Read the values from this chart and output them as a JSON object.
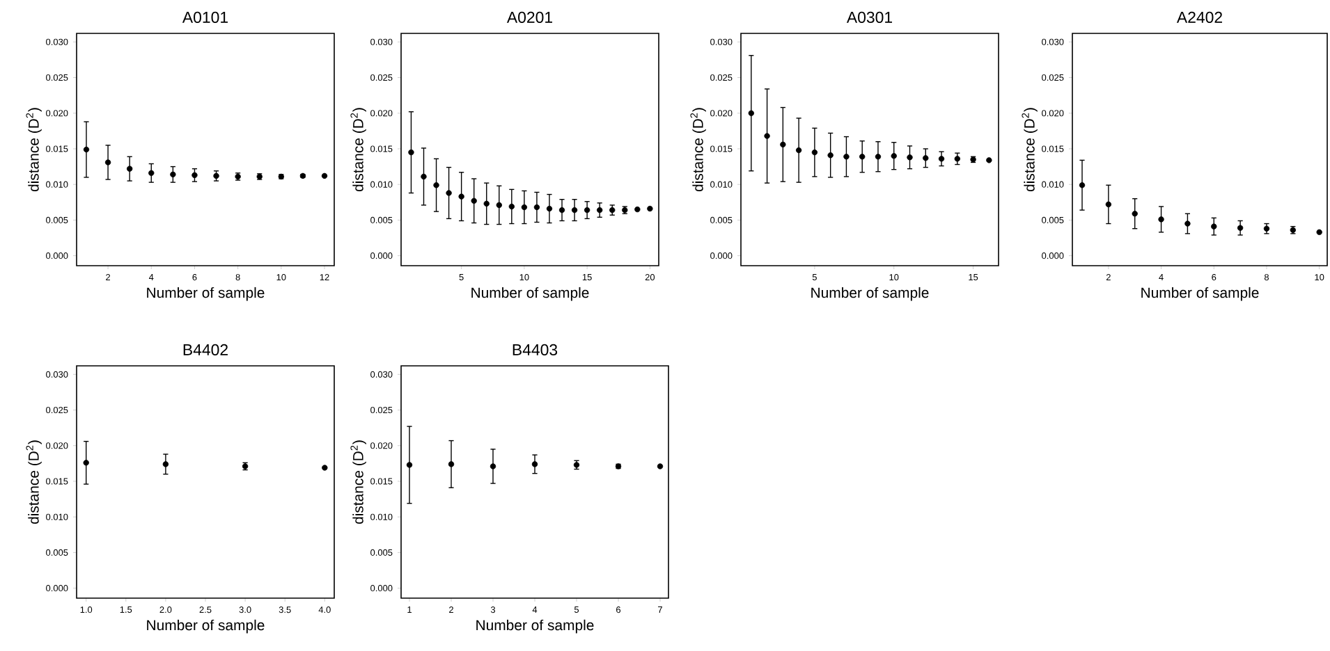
{
  "chart_data": [
    {
      "type": "scatter",
      "title": "A0101",
      "xlabel": "Number of sample",
      "ylabel": "distance (D$^{2}$)",
      "color": "#000000",
      "xlim": [
        0.55,
        12.45
      ],
      "ylim": [
        -0.0014,
        0.0312
      ],
      "xticks": [
        2,
        4,
        6,
        8,
        10,
        12
      ],
      "yticks": [
        {
          "value": 0,
          "label": "0.000"
        },
        {
          "value": 0.005,
          "label": "0.005"
        },
        {
          "value": 0.01,
          "label": "0.010"
        },
        {
          "value": 0.015,
          "label": "0.015"
        },
        {
          "value": 0.02,
          "label": "0.020"
        },
        {
          "value": 0.025,
          "label": "0.025"
        },
        {
          "value": 0.03,
          "label": "0.030"
        }
      ],
      "x": [
        1,
        2,
        3,
        4,
        5,
        6,
        7,
        8,
        9,
        10,
        11,
        12
      ],
      "values": [
        0.0149,
        0.0131,
        0.0122,
        0.0116,
        0.0114,
        0.0113,
        0.0112,
        0.0111,
        0.0111,
        0.0111,
        0.0112,
        0.0112
      ],
      "errors": [
        0.0039,
        0.0024,
        0.0017,
        0.0013,
        0.0011,
        0.0009,
        0.0007,
        0.0005,
        0.0004,
        0.0003,
        0.0002,
        null
      ]
    },
    {
      "type": "scatter",
      "title": "A0201",
      "xlabel": "Number of sample",
      "ylabel": "distance (D$^{2}$)",
      "color": "#000000",
      "xlim": [
        0.2,
        20.7
      ],
      "ylim": [
        -0.0014,
        0.0312
      ],
      "xticks": [
        5,
        10,
        15,
        20
      ],
      "yticks": [
        {
          "value": 0,
          "label": "0.000"
        },
        {
          "value": 0.005,
          "label": "0.005"
        },
        {
          "value": 0.01,
          "label": "0.010"
        },
        {
          "value": 0.015,
          "label": "0.015"
        },
        {
          "value": 0.02,
          "label": "0.020"
        },
        {
          "value": 0.025,
          "label": "0.025"
        },
        {
          "value": 0.03,
          "label": "0.030"
        }
      ],
      "x": [
        1,
        2,
        3,
        4,
        5,
        6,
        7,
        8,
        9,
        10,
        11,
        12,
        13,
        14,
        15,
        16,
        17,
        18,
        19,
        20
      ],
      "values": [
        0.0145,
        0.0111,
        0.0099,
        0.0088,
        0.0083,
        0.0077,
        0.0073,
        0.0071,
        0.0069,
        0.0068,
        0.0068,
        0.0066,
        0.0064,
        0.0064,
        0.0064,
        0.0064,
        0.0064,
        0.0064,
        0.0065,
        0.0066
      ],
      "errors": [
        0.0057,
        0.004,
        0.0037,
        0.0036,
        0.0034,
        0.0031,
        0.0029,
        0.0027,
        0.0024,
        0.0023,
        0.0021,
        0.002,
        0.0015,
        0.0015,
        0.0012,
        0.001,
        0.0007,
        0.0005,
        null,
        null
      ]
    },
    {
      "type": "scatter",
      "title": "A0301",
      "xlabel": "Number of sample",
      "ylabel": "distance (D$^{2}$)",
      "color": "#000000",
      "xlim": [
        0.35,
        16.6
      ],
      "ylim": [
        -0.0014,
        0.0312
      ],
      "xticks": [
        5,
        10,
        15
      ],
      "yticks": [
        {
          "value": 0,
          "label": "0.000"
        },
        {
          "value": 0.005,
          "label": "0.005"
        },
        {
          "value": 0.01,
          "label": "0.010"
        },
        {
          "value": 0.015,
          "label": "0.015"
        },
        {
          "value": 0.02,
          "label": "0.020"
        },
        {
          "value": 0.025,
          "label": "0.025"
        },
        {
          "value": 0.03,
          "label": "0.030"
        }
      ],
      "x": [
        1,
        2,
        3,
        4,
        5,
        6,
        7,
        8,
        9,
        10,
        11,
        12,
        13,
        14,
        15,
        16
      ],
      "values": [
        0.02,
        0.0168,
        0.0156,
        0.0148,
        0.0145,
        0.0141,
        0.0139,
        0.0139,
        0.0139,
        0.014,
        0.0138,
        0.0137,
        0.0136,
        0.0136,
        0.0135,
        0.0134
      ],
      "errors": [
        0.0081,
        0.0066,
        0.0052,
        0.0045,
        0.0034,
        0.0031,
        0.0028,
        0.0022,
        0.0021,
        0.0019,
        0.0016,
        0.0013,
        0.001,
        0.0008,
        0.0004,
        null
      ]
    },
    {
      "type": "scatter",
      "title": "A2402",
      "xlabel": "Number of sample",
      "ylabel": "distance (D$^{2}$)",
      "color": "#000000",
      "xlim": [
        0.63,
        10.3
      ],
      "ylim": [
        -0.0014,
        0.0312
      ],
      "xticks": [
        2,
        4,
        6,
        8,
        10
      ],
      "yticks": [
        {
          "value": 0,
          "label": "0.000"
        },
        {
          "value": 0.005,
          "label": "0.005"
        },
        {
          "value": 0.01,
          "label": "0.010"
        },
        {
          "value": 0.015,
          "label": "0.015"
        },
        {
          "value": 0.02,
          "label": "0.020"
        },
        {
          "value": 0.025,
          "label": "0.025"
        },
        {
          "value": 0.03,
          "label": "0.030"
        }
      ],
      "x": [
        1,
        2,
        3,
        4,
        5,
        6,
        7,
        8,
        9,
        10
      ],
      "values": [
        0.0099,
        0.0072,
        0.0059,
        0.0051,
        0.0045,
        0.0041,
        0.0039,
        0.0038,
        0.0036,
        0.0033
      ],
      "errors": [
        0.0035,
        0.0027,
        0.0021,
        0.0018,
        0.0014,
        0.0012,
        0.001,
        0.0007,
        0.0005,
        null
      ]
    },
    {
      "type": "scatter",
      "title": "B4402",
      "xlabel": "Number of sample",
      "ylabel": "distance (D$^{2}$)",
      "color": "#000000",
      "xlim": [
        0.88,
        4.12
      ],
      "ylim": [
        -0.0014,
        0.0312
      ],
      "xticks": [
        {
          "value": 1,
          "label": "1.0"
        },
        {
          "value": 1.5,
          "label": "1.5"
        },
        {
          "value": 2,
          "label": "2.0"
        },
        {
          "value": 2.5,
          "label": "2.5"
        },
        {
          "value": 3,
          "label": "3.0"
        },
        {
          "value": 3.5,
          "label": "3.5"
        },
        {
          "value": 4,
          "label": "4.0"
        }
      ],
      "yticks": [
        {
          "value": 0,
          "label": "0.000"
        },
        {
          "value": 0.005,
          "label": "0.005"
        },
        {
          "value": 0.01,
          "label": "0.010"
        },
        {
          "value": 0.015,
          "label": "0.015"
        },
        {
          "value": 0.02,
          "label": "0.020"
        },
        {
          "value": 0.025,
          "label": "0.025"
        },
        {
          "value": 0.03,
          "label": "0.030"
        }
      ],
      "x": [
        1,
        2,
        3,
        4
      ],
      "values": [
        0.0176,
        0.0174,
        0.0171,
        0.0169
      ],
      "errors": [
        0.003,
        0.0014,
        0.0005,
        null
      ]
    },
    {
      "type": "scatter",
      "title": "B4403",
      "xlabel": "Number of sample",
      "ylabel": "distance (D$^{2}$)",
      "color": "#000000",
      "xlim": [
        0.8,
        7.2
      ],
      "ylim": [
        -0.0014,
        0.0312
      ],
      "xticks": [
        1,
        2,
        3,
        4,
        5,
        6,
        7
      ],
      "yticks": [
        {
          "value": 0,
          "label": "0.000"
        },
        {
          "value": 0.005,
          "label": "0.005"
        },
        {
          "value": 0.01,
          "label": "0.010"
        },
        {
          "value": 0.015,
          "label": "0.015"
        },
        {
          "value": 0.02,
          "label": "0.020"
        },
        {
          "value": 0.025,
          "label": "0.025"
        },
        {
          "value": 0.03,
          "label": "0.030"
        }
      ],
      "x": [
        1,
        2,
        3,
        4,
        5,
        6,
        7
      ],
      "values": [
        0.0173,
        0.0174,
        0.0171,
        0.0174,
        0.0173,
        0.0171,
        0.0171
      ],
      "errors": [
        0.0054,
        0.0033,
        0.0024,
        0.0013,
        0.0006,
        0.0003,
        null
      ]
    }
  ]
}
